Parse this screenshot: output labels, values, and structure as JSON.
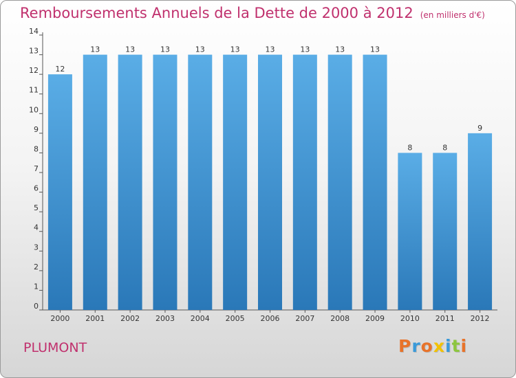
{
  "chart_data": {
    "type": "bar",
    "title": "Remboursements Annuels de la Dette de 2000 à 2012",
    "subtitle": "(en milliers d'€)",
    "categories": [
      "2000",
      "2001",
      "2002",
      "2003",
      "2004",
      "2005",
      "2006",
      "2007",
      "2008",
      "2009",
      "2010",
      "2011",
      "2012"
    ],
    "values": [
      12,
      13,
      13,
      13,
      13,
      13,
      13,
      13,
      13,
      13,
      8,
      8,
      9
    ],
    "data_labels": [
      "12",
      "13",
      "13",
      "13",
      "13",
      "13",
      "13",
      "13",
      "13",
      "13",
      "8",
      "8",
      "9"
    ],
    "ylim": [
      0,
      14
    ],
    "yticks": [
      "0",
      "1",
      "2",
      "3",
      "4",
      "5",
      "6",
      "7",
      "8",
      "9",
      "10",
      "11",
      "12",
      "13",
      "14"
    ],
    "grid": false,
    "bar_color": "#3d8fd1"
  },
  "footer": {
    "commune": "PLUMONT",
    "brand": "Proxiti",
    "brand_colors": [
      "#e8732a",
      "#3a9ad9",
      "#e8732a",
      "#f2c200",
      "#3a9ad9",
      "#8dc63f",
      "#e8732a"
    ]
  }
}
